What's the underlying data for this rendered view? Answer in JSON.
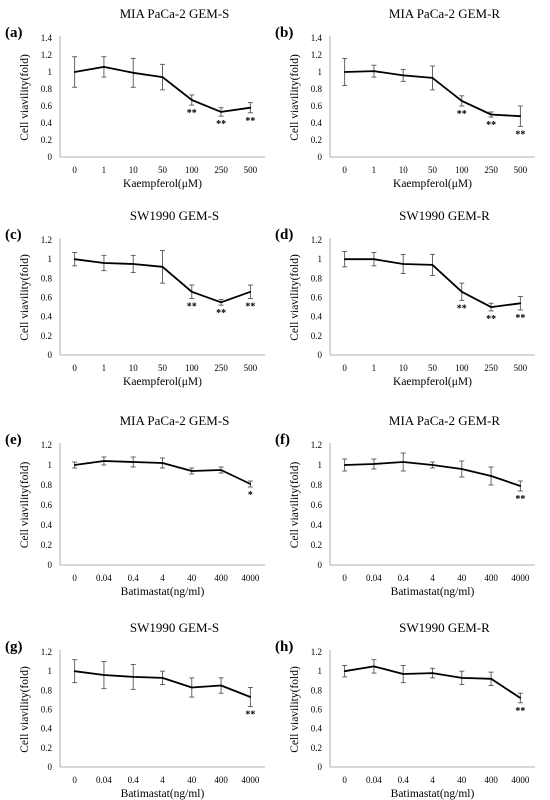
{
  "figure": {
    "x_tick_style": "categorical",
    "colors": {
      "line": "#000000",
      "axis": "#999999",
      "error_bar": "#555555",
      "background": "#ffffff"
    }
  },
  "chart_data": [
    {
      "type": "line",
      "panel_label": "(a)",
      "title": "MIA PaCa-2 GEM-S",
      "xlabel": "Kaempferol(μM)",
      "ylabel": "Cell viavility(fold)",
      "categories": [
        "0",
        "1",
        "10",
        "50",
        "100",
        "250",
        "500"
      ],
      "values": [
        1.0,
        1.06,
        0.99,
        0.94,
        0.67,
        0.53,
        0.58
      ],
      "errors": [
        0.18,
        0.12,
        0.17,
        0.15,
        0.06,
        0.05,
        0.06
      ],
      "significance": [
        "",
        "",
        "",
        "",
        "**",
        "**",
        "**"
      ],
      "ylim": [
        0,
        1.4
      ],
      "yticks": [
        "0",
        "0.2",
        "0.4",
        "0.6",
        "0.8",
        "1",
        "1.2",
        "1.4"
      ],
      "grid": false
    },
    {
      "type": "line",
      "panel_label": "(b)",
      "title": "MIA PaCa-2 GEM-R",
      "xlabel": "Kaempferol(μM)",
      "ylabel": "Cell viavility(fold)",
      "categories": [
        "0",
        "1",
        "10",
        "50",
        "100",
        "250",
        "500"
      ],
      "values": [
        1.0,
        1.01,
        0.96,
        0.93,
        0.66,
        0.5,
        0.48
      ],
      "errors": [
        0.16,
        0.07,
        0.07,
        0.14,
        0.06,
        0.03,
        0.12
      ],
      "significance": [
        "",
        "",
        "",
        "",
        "**",
        "**",
        "**"
      ],
      "ylim": [
        0,
        1.4
      ],
      "yticks": [
        "0",
        "0.2",
        "0.4",
        "0.6",
        "0.8",
        "1",
        "1.2",
        "1.4"
      ],
      "grid": false
    },
    {
      "type": "line",
      "panel_label": "(c)",
      "title": "SW1990 GEM-S",
      "xlabel": "Kaempferol(μM)",
      "ylabel": "Cell viavility(fold)",
      "categories": [
        "0",
        "1",
        "10",
        "50",
        "100",
        "250",
        "500"
      ],
      "values": [
        1.0,
        0.96,
        0.95,
        0.92,
        0.66,
        0.55,
        0.66
      ],
      "errors": [
        0.07,
        0.08,
        0.09,
        0.17,
        0.07,
        0.03,
        0.07
      ],
      "significance": [
        "",
        "",
        "",
        "",
        "**",
        "**",
        "**"
      ],
      "ylim": [
        0,
        1.2
      ],
      "yticks": [
        "0",
        "0.2",
        "0.4",
        "0.6",
        "0.8",
        "1",
        "1.2"
      ],
      "grid": false
    },
    {
      "type": "line",
      "panel_label": "(d)",
      "title": "SW1990 GEM-R",
      "xlabel": "Kaempferol(μM)",
      "ylabel": "Cell viavility(fold)",
      "categories": [
        "0",
        "1",
        "10",
        "50",
        "100",
        "250",
        "500"
      ],
      "values": [
        1.0,
        1.0,
        0.95,
        0.94,
        0.66,
        0.5,
        0.54
      ],
      "errors": [
        0.08,
        0.07,
        0.1,
        0.11,
        0.09,
        0.04,
        0.07
      ],
      "significance": [
        "",
        "",
        "",
        "",
        "**",
        "**",
        "**"
      ],
      "ylim": [
        0,
        1.2
      ],
      "yticks": [
        "0",
        "0.2",
        "0.4",
        "0.6",
        "0.8",
        "1",
        "1.2"
      ],
      "grid": false
    },
    {
      "type": "line",
      "panel_label": "(e)",
      "title": "MIA PaCa-2 GEM-S",
      "xlabel": "Batimastat(ng/ml)",
      "ylabel": "Cell viavility(fold)",
      "categories": [
        "0",
        "0.04",
        "0.4",
        "4",
        "40",
        "400",
        "4000"
      ],
      "values": [
        1.0,
        1.04,
        1.03,
        1.02,
        0.94,
        0.95,
        0.81
      ],
      "errors": [
        0.03,
        0.04,
        0.05,
        0.05,
        0.03,
        0.03,
        0.03
      ],
      "significance": [
        "",
        "",
        "",
        "",
        "",
        "",
        "*"
      ],
      "ylim": [
        0,
        1.2
      ],
      "yticks": [
        "0",
        "0.2",
        "0.4",
        "0.6",
        "0.8",
        "1",
        "1.2"
      ],
      "grid": false
    },
    {
      "type": "line",
      "panel_label": "(f)",
      "title": "MIA PaCa-2 GEM-R",
      "xlabel": "Batimastat(ng/ml)",
      "ylabel": "Cell viavility(fold)",
      "categories": [
        "0",
        "0.04",
        "0.4",
        "4",
        "40",
        "400",
        "4000"
      ],
      "values": [
        1.0,
        1.01,
        1.03,
        1.0,
        0.96,
        0.89,
        0.79
      ],
      "errors": [
        0.06,
        0.05,
        0.09,
        0.03,
        0.08,
        0.09,
        0.05
      ],
      "significance": [
        "",
        "",
        "",
        "",
        "",
        "",
        "**"
      ],
      "ylim": [
        0,
        1.2
      ],
      "yticks": [
        "0",
        "0.2",
        "0.4",
        "0.6",
        "0.8",
        "1",
        "1.2"
      ],
      "grid": false
    },
    {
      "type": "line",
      "panel_label": "(g)",
      "title": "SW1990 GEM-S",
      "xlabel": "Batimastat(ng/ml)",
      "ylabel": "Cell viavility(fold)",
      "categories": [
        "0",
        "0.04",
        "0.4",
        "4",
        "40",
        "400",
        "4000"
      ],
      "values": [
        1.0,
        0.96,
        0.94,
        0.93,
        0.83,
        0.85,
        0.73
      ],
      "errors": [
        0.12,
        0.14,
        0.13,
        0.07,
        0.1,
        0.08,
        0.1
      ],
      "significance": [
        "",
        "",
        "",
        "",
        "",
        "",
        "**"
      ],
      "ylim": [
        0,
        1.2
      ],
      "yticks": [
        "0",
        "0.2",
        "0.4",
        "0.6",
        "0.8",
        "1",
        "1.2"
      ],
      "grid": false
    },
    {
      "type": "line",
      "panel_label": "(h)",
      "title": "SW1990 GEM-R",
      "xlabel": "Batimastat(ng/ml)",
      "ylabel": "Cell viavility(fold)",
      "categories": [
        "0",
        "0.04",
        "0.4",
        "4",
        "40",
        "400",
        "4000"
      ],
      "values": [
        1.0,
        1.05,
        0.97,
        0.98,
        0.93,
        0.92,
        0.72
      ],
      "errors": [
        0.06,
        0.07,
        0.09,
        0.05,
        0.07,
        0.07,
        0.05
      ],
      "significance": [
        "",
        "",
        "",
        "",
        "",
        "",
        "**"
      ],
      "ylim": [
        0,
        1.2
      ],
      "yticks": [
        "0",
        "0.2",
        "0.4",
        "0.6",
        "0.8",
        "1",
        "1.2"
      ],
      "grid": false
    }
  ]
}
